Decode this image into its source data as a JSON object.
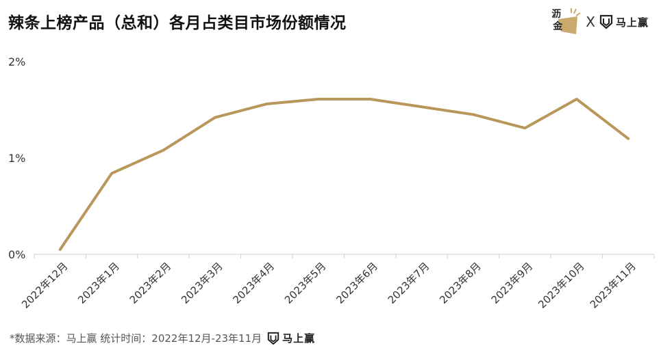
{
  "title": "辣条上榜产品（总和）各月占类目市场份额情况",
  "brand": {
    "logo1_top": "沥",
    "logo1_bottom": "金",
    "separator": "X",
    "logo2_name": "马上赢",
    "accent": "#C9A96E"
  },
  "footer": {
    "source_text": "*数据来源：马上赢  统计时间：2022年12月-23年11月",
    "logo_name": "马上赢"
  },
  "chart_data": {
    "type": "line",
    "categories": [
      "2022年12月",
      "2023年1月",
      "2023年2月",
      "2023年3月",
      "2023年4月",
      "2023年5月",
      "2023年6月",
      "2023年7月",
      "2023年8月",
      "2023年9月",
      "2023年10月",
      "2023年11月"
    ],
    "series": [
      {
        "values": [
          0.05,
          0.84,
          1.08,
          1.42,
          1.56,
          1.61,
          1.61,
          1.53,
          1.45,
          1.31,
          1.61,
          1.2
        ]
      }
    ],
    "yticks": [
      0,
      1,
      2
    ],
    "ytick_labels": [
      "0%",
      "1%",
      "2%"
    ],
    "ylim": [
      0,
      2
    ],
    "line_color": "#B9975B",
    "grid": false,
    "title": "辣条上榜产品（总和）各月占类目市场份额情况"
  }
}
